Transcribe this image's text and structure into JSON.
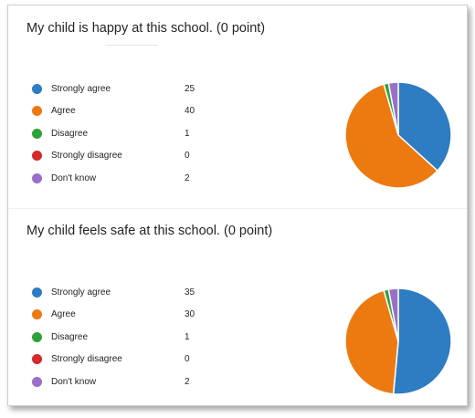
{
  "colors": {
    "strongly_agree": "#2E7CC2",
    "agree": "#EC7A11",
    "disagree": "#2FA239",
    "strongly_disagree": "#D32A2A",
    "dont_know": "#9B6FC9"
  },
  "questions": [
    {
      "title": "My child is happy at this school. (0 point)",
      "options": [
        {
          "label": "Strongly agree",
          "count": "25"
        },
        {
          "label": "Agree",
          "count": "40"
        },
        {
          "label": "Disagree",
          "count": "1"
        },
        {
          "label": "Strongly disagree",
          "count": "0"
        },
        {
          "label": "Don't know",
          "count": "2"
        }
      ]
    },
    {
      "title": "My child feels safe at this school. (0 point)",
      "options": [
        {
          "label": "Strongly agree",
          "count": "35"
        },
        {
          "label": "Agree",
          "count": "30"
        },
        {
          "label": "Disagree",
          "count": "1"
        },
        {
          "label": "Strongly disagree",
          "count": "0"
        },
        {
          "label": "Don't know",
          "count": "2"
        }
      ]
    }
  ],
  "chart_data": [
    {
      "type": "pie",
      "title": "My child is happy at this school. (0 point)",
      "categories": [
        "Strongly agree",
        "Agree",
        "Disagree",
        "Strongly disagree",
        "Don't know"
      ],
      "values": [
        25,
        40,
        1,
        0,
        2
      ],
      "legend": "left"
    },
    {
      "type": "pie",
      "title": "My child feels safe at this school. (0 point)",
      "categories": [
        "Strongly agree",
        "Agree",
        "Disagree",
        "Strongly disagree",
        "Don't know"
      ],
      "values": [
        35,
        30,
        1,
        0,
        2
      ],
      "legend": "left"
    }
  ]
}
